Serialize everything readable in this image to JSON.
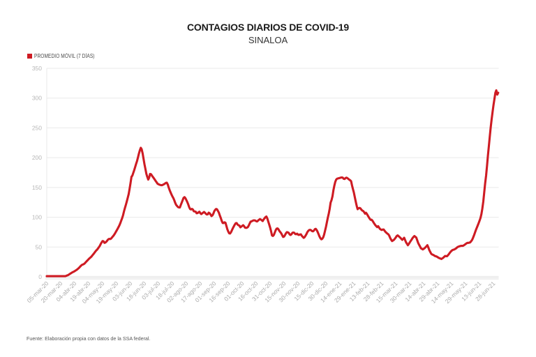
{
  "title": "CONTAGIOS DIARIOS DE COVID-19",
  "subtitle": "SINALOA",
  "legend": {
    "label": "PROMEDIO MÓVIL (7 DÍAS)",
    "swatch_color": "#ce1b23"
  },
  "source_note": "Fuente: Elaboración propia con datos de la SSA federal.",
  "colors": {
    "line": "#ce1b23",
    "grid": "#e9e9e9",
    "axis_band": "#f1f1f1",
    "y_tick_label": "#b6b6b6",
    "x_tick_label": "#ababab",
    "title": "#1a1a1a",
    "subtitle": "#333333",
    "legend_text": "#4a4a4a",
    "source_text": "#565656"
  },
  "chart_data": {
    "type": "line",
    "title": "CONTAGIOS DIARIOS DE COVID-19",
    "subtitle": "SINALOA",
    "series_name": "PROMEDIO MÓVIL (7 DÍAS)",
    "x_start_date": "05-mar-20",
    "x_end_date": "03-jul-21",
    "x_step_days": 1,
    "x_tick_labels": [
      "05-mar-20",
      "20-mar-20",
      "04-abr-20",
      "19-abr-20",
      "04-may-20",
      "19-may-20",
      "03-jun-20",
      "18-jun-20",
      "03-jul-20",
      "18-jul-20",
      "02-ago-20",
      "17-ago-20",
      "01-sep-20",
      "16-sep-20",
      "01-oct-20",
      "16-oct-20",
      "31-oct-20",
      "15-nov-20",
      "30-nov-20",
      "15-dic-20",
      "30-dic-20",
      "14-ene-21",
      "29-ene-21",
      "13-feb-21",
      "28-feb-21",
      "15-mar-21",
      "30-mar-21",
      "14-abr-21",
      "29-abr-21",
      "14-may-21",
      "29-may-21",
      "13-jun-21",
      "28-jun-21"
    ],
    "x_tick_interval_days": 15,
    "ylim": [
      0,
      350
    ],
    "y_ticks": [
      0,
      50,
      100,
      150,
      200,
      250,
      300,
      350
    ],
    "grid": "horizontal",
    "legend_position": "top-left",
    "values": [
      1.0,
      1.0,
      1.0,
      1.0,
      1.0,
      1.0,
      1.0,
      1.0,
      1.0,
      1.0,
      1.0,
      1.0,
      1.0,
      1.0,
      1.0,
      1.0,
      1.0,
      1.0,
      1.0,
      1.0,
      1.0,
      1.7,
      2.3,
      3.0,
      4.0,
      5.0,
      6.0,
      7.0,
      7.8,
      8.7,
      9.5,
      10.5,
      11.6,
      12.8,
      14.0,
      15.7,
      17.3,
      19.0,
      20.2,
      20.7,
      21.5,
      23.0,
      24.7,
      26.3,
      28.0,
      29.6,
      31.1,
      32.5,
      34.0,
      35.9,
      37.9,
      39.8,
      41.9,
      44.0,
      45.4,
      47.4,
      49.7,
      52.0,
      55.0,
      58.0,
      60.0,
      59.7,
      57.0,
      57.6,
      59.0,
      60.9,
      62.8,
      63.8,
      63.3,
      64.0,
      66.0,
      67.8,
      69.6,
      72.1,
      74.8,
      77.5,
      80.3,
      83.2,
      86.1,
      90.1,
      94.4,
      98.4,
      103.7,
      110.0,
      115.5,
      121.0,
      126.6,
      132.6,
      139.0,
      147.9,
      157.2,
      168.0,
      170.0,
      174.5,
      179.5,
      184.5,
      189.5,
      194.5,
      200.5,
      206.7,
      212.4,
      216.5,
      214.1,
      207.1,
      197.9,
      189.1,
      180.9,
      173.0,
      168.0,
      163.3,
      166.4,
      172.7,
      172.2,
      169.9,
      167.7,
      165.5,
      163.3,
      161.0,
      158.7,
      156.4,
      155.5,
      154.7,
      154.2,
      153.8,
      153.8,
      154.7,
      155.5,
      156.6,
      157.7,
      158.0,
      155.0,
      150.0,
      145.7,
      141.7,
      138.3,
      135.1,
      132.2,
      128.5,
      124.3,
      120.7,
      118.9,
      117.2,
      116.5,
      116.4,
      120.5,
      124.6,
      128.5,
      132.5,
      133.7,
      131.9,
      128.9,
      125.4,
      121.6,
      117.2,
      113.8,
      113.1,
      114.0,
      113.0,
      110.0,
      109.7,
      109.3,
      106.8,
      107.0,
      108.3,
      109.3,
      106.9,
      105.4,
      106.5,
      107.7,
      108.9,
      107.4,
      105.8,
      104.6,
      105.0,
      107.7,
      106.7,
      104.7,
      102.0,
      103.1,
      106.1,
      110.0,
      112.5,
      113.9,
      113.3,
      110.4,
      107.5,
      102.9,
      98.6,
      94.0,
      90.4,
      90.2,
      91.5,
      90.7,
      85.3,
      80.0,
      76.0,
      73.0,
      72.7,
      75.1,
      78.4,
      81.7,
      84.9,
      87.7,
      89.9,
      90.2,
      87.8,
      86.5,
      85.9,
      83.1,
      84.3,
      85.5,
      86.6,
      85.1,
      82.5,
      82.2,
      82.4,
      83.5,
      86.0,
      89.4,
      92.6,
      93.1,
      93.9,
      94.7,
      94.8,
      94.5,
      93.3,
      92.9,
      94.4,
      95.7,
      96.9,
      96.2,
      94.8,
      93.6,
      96.2,
      98.3,
      100.2,
      101.3,
      97.7,
      92.7,
      87.9,
      82.5,
      76.5,
      69.5,
      68.6,
      70.4,
      74.2,
      78.4,
      80.9,
      81.2,
      79.5,
      76.8,
      74.9,
      72.8,
      69.7,
      67.0,
      67.7,
      70.2,
      73.1,
      75.0,
      74.7,
      73.7,
      71.0,
      70.2,
      71.6,
      74.0,
      74.3,
      73.9,
      71.8,
      71.5,
      72.4,
      70.8,
      70.2,
      71.0,
      71.3,
      69.0,
      67.2,
      65.4,
      66.5,
      68.9,
      71.7,
      75.0,
      77.1,
      78.5,
      78.9,
      78.2,
      76.8,
      76.3,
      77.5,
      80.0,
      80.5,
      78.7,
      75.4,
      71.8,
      67.9,
      64.8,
      63.0,
      63.8,
      66.2,
      70.8,
      77.1,
      84.0,
      91.6,
      99.1,
      106.3,
      114.3,
      124.6,
      129.0,
      135.2,
      145.0,
      153.2,
      159.4,
      163.2,
      164.8,
      165.2,
      165.6,
      166.1,
      166.6,
      166.8,
      166.4,
      164.6,
      164.2,
      165.8,
      166.5,
      165.6,
      164.3,
      163.1,
      162.0,
      160.5,
      153.3,
      146.9,
      141.2,
      133.7,
      125.8,
      119.0,
      113.5,
      115.2,
      115.7,
      115.0,
      112.7,
      111.2,
      110.5,
      108.5,
      106.0,
      107.4,
      105.3,
      102.7,
      100.1,
      97.5,
      95.6,
      95.9,
      94.0,
      91.5,
      89.1,
      86.7,
      85.1,
      83.5,
      85.0,
      82.6,
      80.4,
      79.3,
      78.7,
      79.4,
      79.4,
      77.3,
      75.4,
      73.8,
      72.5,
      71.4,
      68.8,
      65.1,
      62.4,
      60.0,
      61.0,
      62.0,
      64.0,
      66.0,
      68.5,
      69.5,
      68.3,
      67.0,
      65.3,
      63.7,
      62.0,
      63.8,
      65.5,
      61.8,
      58.0,
      55.5,
      53.0,
      55.3,
      57.7,
      60.0,
      62.5,
      65.0,
      66.8,
      68.5,
      67.2,
      66.0,
      61.5,
      57.0,
      54.0,
      51.0,
      48.0,
      47.0,
      46.0,
      47.0,
      48.0,
      49.7,
      51.3,
      53.0,
      49.0,
      45.0,
      42.0,
      38.9,
      37.6,
      37.0,
      36.0,
      35.0,
      34.5,
      34.0,
      33.0,
      32.0,
      31.3,
      30.7,
      30.0,
      31.0,
      32.0,
      33.5,
      35.0,
      34.8,
      34.5,
      36.2,
      38.0,
      40.2,
      42.3,
      43.8,
      45.0,
      45.5,
      46.0,
      47.0,
      48.0,
      49.5,
      50.4,
      51.0,
      51.5,
      52.0,
      52.0,
      52.0,
      52.8,
      53.8,
      55.0,
      56.2,
      57.0,
      57.0,
      57.3,
      57.9,
      59.8,
      62.0,
      65.5,
      69.4,
      74.1,
      78.3,
      82.2,
      86.1,
      90.0,
      94.1,
      98.9,
      105.4,
      114.5,
      126.5,
      141.5,
      156.5,
      170.0,
      186.0,
      203.5,
      220.0,
      235.7,
      250.8,
      265.0,
      277.0,
      288.3,
      299.0,
      309.0,
      313.0,
      305.9,
      309.0
    ]
  }
}
